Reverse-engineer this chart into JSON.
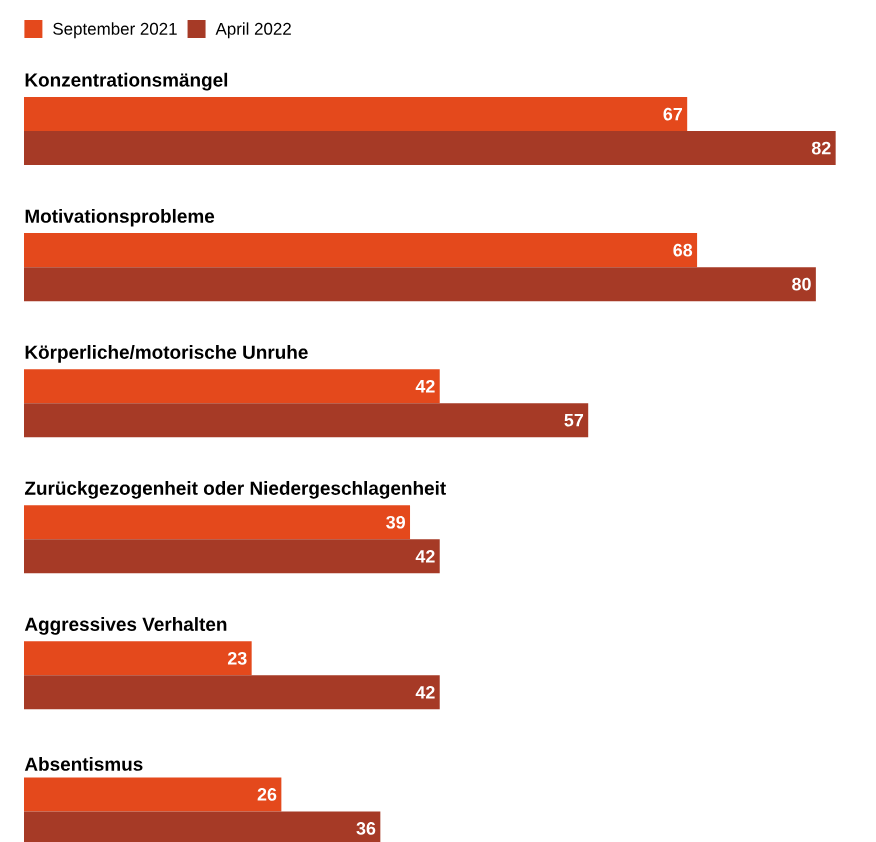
{
  "chart_data": {
    "type": "bar",
    "orientation": "horizontal",
    "categories": [
      "Konzentrationsmängel",
      "Motivationsprobleme",
      "Körperliche/motorische Unruhe",
      "Zurückgezogenheit oder Niedergeschlagenheit",
      "Aggressives Verhalten",
      "Absentismus"
    ],
    "series": [
      {
        "name": "September 2021",
        "color": "#e4491c",
        "values": [
          67,
          68,
          42,
          39,
          23,
          26
        ]
      },
      {
        "name": "April 2022",
        "color": "#a63a26",
        "values": [
          82,
          80,
          57,
          42,
          42,
          36
        ]
      }
    ],
    "data_labels": true,
    "legend": "top left"
  }
}
